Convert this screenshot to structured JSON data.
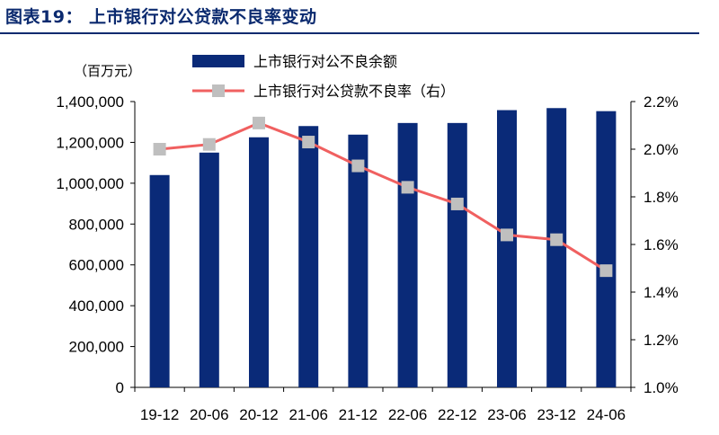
{
  "title": "图表19：  上市银行对公贷款不良率变动",
  "chart_data": {
    "type": "bar",
    "categories": [
      "19-12",
      "20-06",
      "20-12",
      "21-06",
      "21-12",
      "22-06",
      "22-12",
      "23-06",
      "23-12",
      "24-06"
    ],
    "unit_left": "（百万元）",
    "series": [
      {
        "name": "上市银行对公不良余额",
        "type": "bar",
        "axis": "left",
        "color": "#0a2a78",
        "values": [
          1040000,
          1150000,
          1225000,
          1280000,
          1238000,
          1295000,
          1295000,
          1358000,
          1368000,
          1353000
        ]
      },
      {
        "name": "上市银行对公贷款不良率（右）",
        "type": "line",
        "axis": "right",
        "color": "#f06060",
        "marker_color": "#bfbfbf",
        "values": [
          2.0,
          2.02,
          2.11,
          2.03,
          1.93,
          1.84,
          1.77,
          1.64,
          1.62,
          1.49
        ]
      }
    ],
    "ylim_left": [
      0,
      1400000
    ],
    "yticks_left": [
      "0",
      "200,000",
      "400,000",
      "600,000",
      "800,000",
      "1,000,000",
      "1,200,000",
      "1,400,000"
    ],
    "ylim_right": [
      1.0,
      2.2
    ],
    "yticks_right": [
      "1.0%",
      "1.2%",
      "1.4%",
      "1.6%",
      "1.8%",
      "2.0%",
      "2.2%"
    ],
    "legend_position": "top",
    "grid": false
  }
}
